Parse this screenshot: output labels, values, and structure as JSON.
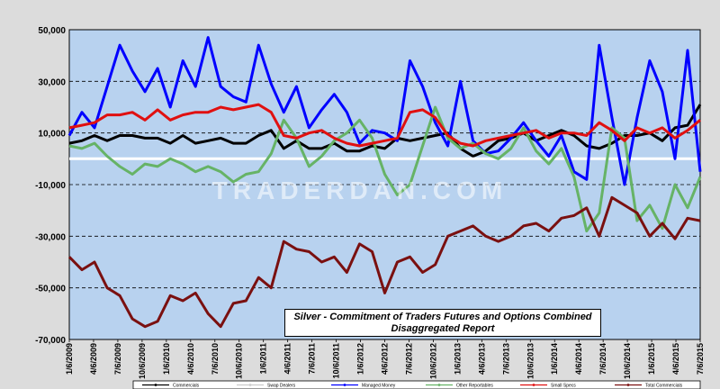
{
  "watermark": "TRADERDAN.COM",
  "chart_data": {
    "type": "line",
    "title": "Silver - Commitment of Traders Futures and Options Combined",
    "subtitle": "Disaggregated  Report",
    "xlabel": "",
    "ylabel": "",
    "ylim": [
      -70000,
      50000
    ],
    "yticks": [
      50000,
      30000,
      10000,
      -10000,
      -30000,
      -50000,
      -70000
    ],
    "ytick_labels": [
      "50,000",
      "30,000",
      "10,000",
      "-10,000",
      "-30,000",
      "-50,000",
      "-70,000"
    ],
    "x_tick_labels": [
      "1/6/2009",
      "4/6/2009",
      "7/6/2009",
      "10/6/2009",
      "1/6/2010",
      "4/6/2010",
      "7/6/2010",
      "10/6/2010",
      "1/6/2011",
      "4/6/2011",
      "7/6/2011",
      "10/6/2011",
      "1/6/2012",
      "4/6/2012",
      "7/6/2012",
      "10/6/2012",
      "1/6/2013",
      "4/6/2013",
      "7/6/2013",
      "10/6/2013",
      "1/6/2014",
      "4/6/2014",
      "7/6/2014",
      "10/6/2014",
      "1/6/2015",
      "4/6/2015",
      "7/6/2015"
    ],
    "grid": "horizontal dashed",
    "legend_position": "bottom",
    "series": [
      {
        "name": "Commercials",
        "color": "#000000",
        "values": [
          6000,
          7000,
          9000,
          7000,
          9000,
          9000,
          8000,
          8000,
          6000,
          9000,
          6000,
          7000,
          8000,
          6000,
          6000,
          9000,
          11000,
          4000,
          7000,
          4000,
          4000,
          6000,
          3000,
          3000,
          5000,
          4000,
          8000,
          7000,
          8000,
          9000,
          10000,
          4000,
          1000,
          3000,
          7000,
          8000,
          10000,
          7000,
          9000,
          11000,
          9000,
          5000,
          4000,
          6000,
          9000,
          9000,
          10000,
          7000,
          12000,
          13000,
          21000
        ]
      },
      {
        "name": "Swap Dealers",
        "color": "#ffffff",
        "values": [
          0,
          0,
          0,
          0,
          0,
          0,
          0,
          0,
          0,
          0,
          0,
          0,
          0,
          0,
          0,
          0,
          0,
          0,
          0,
          0,
          0,
          0,
          0,
          0,
          0,
          0,
          0,
          0,
          0,
          0,
          0,
          0,
          0,
          0,
          0,
          0,
          0,
          0,
          0,
          0,
          0,
          0,
          0,
          0,
          0,
          0,
          0,
          0,
          0,
          0,
          0
        ]
      },
      {
        "name": "Managed Money",
        "color": "#0000ff",
        "values": [
          9000,
          18000,
          12000,
          28000,
          44000,
          34000,
          26000,
          35000,
          20000,
          38000,
          28000,
          47000,
          28000,
          24000,
          22000,
          44000,
          29000,
          18000,
          28000,
          12000,
          19000,
          25000,
          18000,
          6000,
          11000,
          10000,
          7000,
          38000,
          28000,
          14000,
          5000,
          30000,
          7000,
          2000,
          3000,
          8000,
          14000,
          7000,
          1000,
          9000,
          -5000,
          -8000,
          44000,
          16000,
          -10000,
          16000,
          38000,
          26000,
          0,
          42000,
          -5000
        ]
      },
      {
        "name": "Other Reportables",
        "color": "#66b366",
        "values": [
          5000,
          4000,
          6000,
          1000,
          -3000,
          -6000,
          -2000,
          -3000,
          0,
          -2000,
          -5000,
          -3000,
          -5000,
          -9000,
          -6000,
          -5000,
          2000,
          15000,
          8000,
          -3000,
          1000,
          7000,
          10000,
          15000,
          8000,
          -6000,
          -14000,
          -10000,
          5000,
          20000,
          8000,
          4000,
          6000,
          2000,
          0,
          4000,
          12000,
          3000,
          -2000,
          4000,
          -7000,
          -28000,
          -21000,
          12000,
          8000,
          -24000,
          -18000,
          -27000,
          -10000,
          -19000,
          -7000
        ]
      },
      {
        "name": "Small Specs",
        "color": "#e01010",
        "values": [
          12000,
          13000,
          14000,
          17000,
          17000,
          18000,
          15000,
          19000,
          15000,
          17000,
          18000,
          18000,
          20000,
          19000,
          20000,
          21000,
          18000,
          9000,
          8000,
          10000,
          11000,
          8000,
          6000,
          5000,
          6000,
          7000,
          8000,
          18000,
          19000,
          16000,
          9000,
          6000,
          5000,
          7000,
          8000,
          9000,
          10000,
          11000,
          8000,
          10000,
          10000,
          9000,
          14000,
          11000,
          7000,
          12000,
          10000,
          12000,
          8000,
          11000,
          15000
        ]
      },
      {
        "name": "Total Commercials",
        "color": "#7a1010",
        "values": [
          -38000,
          -43000,
          -40000,
          -50000,
          -53000,
          -62000,
          -65000,
          -63000,
          -53000,
          -55000,
          -52000,
          -60000,
          -65000,
          -56000,
          -55000,
          -46000,
          -50000,
          -32000,
          -35000,
          -36000,
          -40000,
          -38000,
          -44000,
          -33000,
          -36000,
          -52000,
          -40000,
          -38000,
          -44000,
          -41000,
          -30000,
          -28000,
          -26000,
          -30000,
          -32000,
          -30000,
          -26000,
          -25000,
          -28000,
          -23000,
          -22000,
          -19000,
          -30000,
          -15000,
          -18000,
          -21000,
          -30000,
          -25000,
          -31000,
          -23000,
          -24000
        ]
      }
    ]
  }
}
